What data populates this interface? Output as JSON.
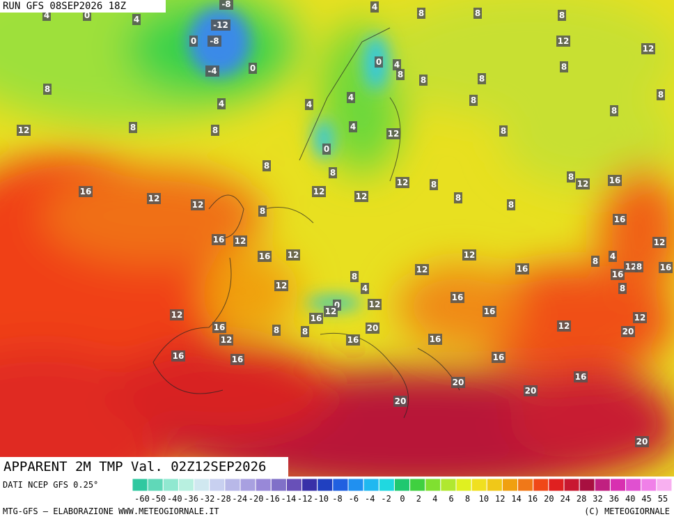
{
  "header": {
    "run": "RUN GFS 08SEP2026 18Z"
  },
  "title": "APPARENT 2M TMP Val. 02Z12SEP2026",
  "source": "DATI NCEP GFS 0.25°",
  "footer": {
    "left": "MTG-GFS — ELABORAZIONE WWW.METEOGIORNALE.IT",
    "right": "(C) METEOGIORNALE"
  },
  "scale": {
    "labels": [
      -60,
      -50,
      -40,
      -36,
      -32,
      -28,
      -24,
      -20,
      -16,
      -14,
      -12,
      -10,
      -8,
      -6,
      -4,
      -2,
      0,
      2,
      4,
      6,
      8,
      10,
      12,
      14,
      16,
      20,
      24,
      28,
      32,
      36,
      40,
      45,
      55
    ]
  },
  "map_labels": [
    -8,
    4,
    0,
    4,
    -12,
    0,
    -8,
    -4,
    0,
    4,
    8,
    8,
    8,
    12,
    12,
    0,
    4,
    8,
    8,
    8,
    8,
    8,
    4,
    4,
    4,
    8,
    8,
    8,
    12,
    8,
    8,
    4,
    12,
    8,
    0,
    8,
    8,
    8,
    12,
    16,
    12,
    8,
    16,
    12,
    12,
    8,
    12,
    12,
    8,
    8,
    16,
    16,
    12,
    12,
    16,
    12,
    12,
    8,
    4,
    12,
    8,
    16,
    16,
    12,
    8,
    16,
    8,
    12,
    4,
    16,
    0,
    12,
    16,
    16,
    12,
    12,
    16,
    12,
    8,
    8,
    20,
    12,
    12,
    20,
    16,
    16,
    16,
    16,
    16,
    16,
    20,
    20,
    20,
    20
  ]
}
